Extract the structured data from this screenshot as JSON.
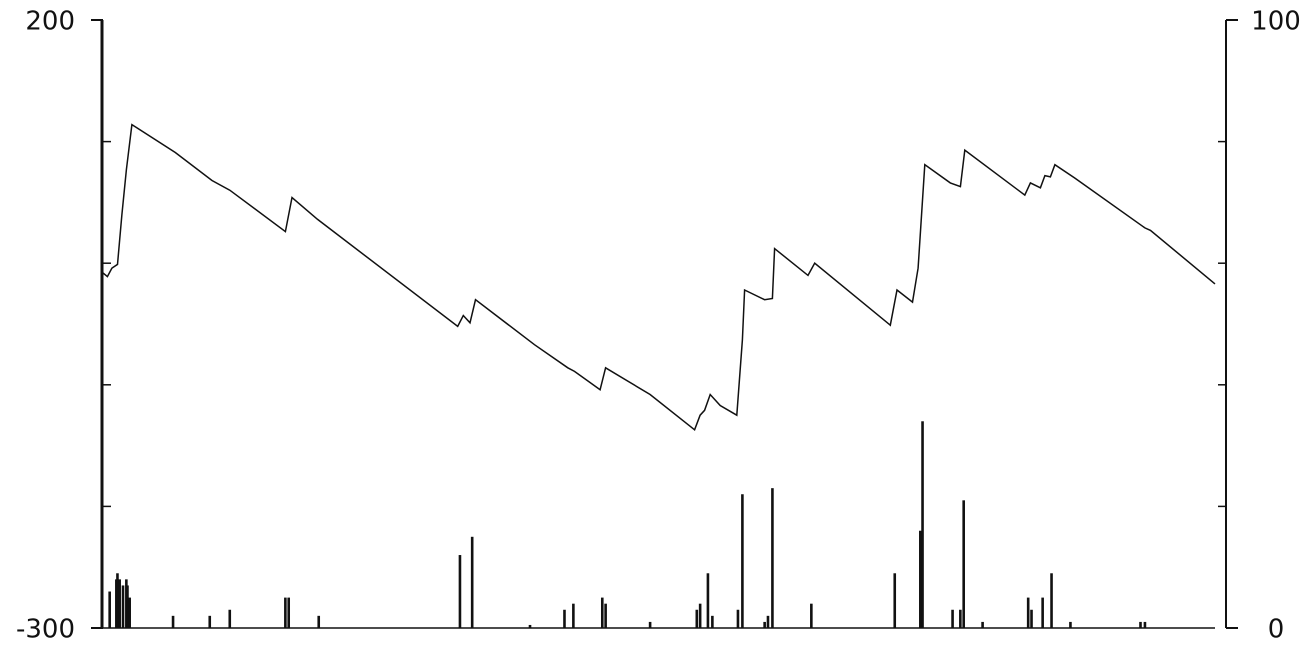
{
  "chart_data": {
    "type": "combo",
    "xlim": [
      0,
      1000
    ],
    "ylim": [
      -300,
      200
    ],
    "yticks": [
      200,
      -300
    ],
    "yminor_ticks": [
      100,
      0,
      -100,
      -200
    ],
    "y2lim": [
      0,
      100
    ],
    "y2ticks": [
      100,
      0
    ],
    "y2minor_ticks": [
      80,
      60,
      40,
      20
    ],
    "series": [
      {
        "type": "line",
        "color": "#111111",
        "x": [
          0,
          4,
          8,
          13,
          17,
          21,
          26,
          65,
          98,
          114,
          164,
          170,
          193,
          319,
          324,
          330,
          335,
          388,
          418,
          424,
          447,
          452,
          492,
          532,
          537,
          541,
          546,
          555,
          570,
          575,
          577,
          595,
          602,
          604,
          634,
          640,
          708,
          714,
          728,
          733,
          739,
          762,
          771,
          775,
          829,
          834,
          843,
          847,
          852,
          856,
          874,
          937,
          942,
          1000
        ],
        "values": [
          -8,
          -11,
          -4,
          -1,
          40,
          77,
          114,
          91,
          68,
          60,
          26,
          54,
          36,
          -52,
          -43,
          -49,
          -30,
          -67,
          -86,
          -89,
          -104,
          -86,
          -108,
          -137,
          -125,
          -121,
          -108,
          -117,
          -125,
          -63,
          -22,
          -30,
          -29,
          12,
          -10,
          0,
          -51,
          -22,
          -32,
          -4,
          81,
          66,
          63,
          93,
          56,
          66,
          62,
          72,
          71,
          81,
          70,
          29,
          27,
          -17
        ]
      },
      {
        "type": "bar",
        "axis": "y2",
        "color": "#111111",
        "x": [
          6,
          12,
          13,
          15,
          18,
          21,
          22,
          24,
          63,
          96,
          114,
          164,
          167,
          194,
          321,
          332,
          384,
          415,
          423,
          449,
          452,
          492,
          534,
          537,
          544,
          548,
          571,
          575,
          595,
          598,
          602,
          637,
          712,
          735,
          737,
          764,
          771,
          774,
          791,
          832,
          835,
          845,
          853,
          870,
          933,
          937
        ],
        "values": [
          6,
          8,
          9,
          8,
          7,
          8,
          7,
          5,
          2,
          2,
          3,
          5,
          5,
          2,
          12,
          15,
          0.5,
          3,
          4,
          5,
          4,
          1,
          3,
          4,
          9,
          2,
          3,
          22,
          1,
          2,
          23,
          4,
          9,
          16,
          34,
          3,
          3,
          21,
          1,
          5,
          3,
          5,
          9,
          1,
          1,
          1
        ]
      }
    ]
  }
}
